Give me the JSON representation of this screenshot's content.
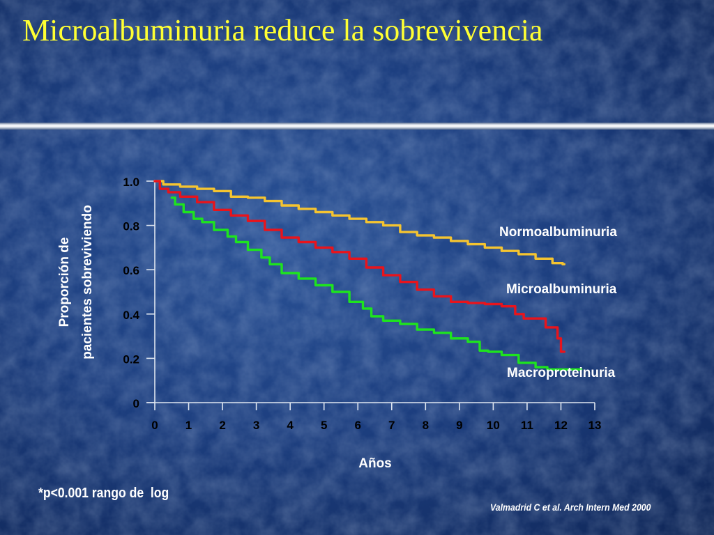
{
  "slide": {
    "title": "Microalbuminuria reduce la sobrevivencia",
    "note": "*p<0.001 rango de  log",
    "citation": "Valmadrid C et al. Arch Intern Med 2000",
    "colors": {
      "title": "#ffff33",
      "background": "#1d3f80",
      "text": "#ffffff",
      "ticks": "#000000"
    }
  },
  "chart_data": {
    "type": "line",
    "title": "",
    "xlabel": "Años",
    "ylabel": "Proporción de pacientes sobreviviendo",
    "ylabel_lines": [
      "Proporción de",
      "pacientes sobreviviendo"
    ],
    "xlim": [
      0,
      13
    ],
    "ylim": [
      0,
      1.0
    ],
    "x_ticks": [
      0,
      1,
      2,
      3,
      4,
      5,
      6,
      7,
      8,
      9,
      10,
      11,
      12,
      13
    ],
    "x_tick_labels": [
      "0",
      "1",
      "2",
      "3",
      "4",
      "5",
      "6",
      "7",
      "8",
      "9",
      "10",
      "11",
      "12",
      "13"
    ],
    "y_ticks": [
      0,
      0.2,
      0.4,
      0.6,
      0.8,
      1.0
    ],
    "y_tick_labels": [
      "0",
      "0.2",
      "0.4",
      "0.6",
      "0.8",
      "1.0"
    ],
    "grid": false,
    "legend": "labels next to lines (right)",
    "series": [
      {
        "name": "Normoalbuminuria",
        "color": "#f5c430",
        "points": [
          [
            0,
            1.0
          ],
          [
            0.5,
            0.985
          ],
          [
            1,
            0.975
          ],
          [
            1.5,
            0.965
          ],
          [
            2,
            0.955
          ],
          [
            2.5,
            0.93
          ],
          [
            3,
            0.925
          ],
          [
            3.5,
            0.91
          ],
          [
            4,
            0.89
          ],
          [
            4.5,
            0.875
          ],
          [
            5,
            0.86
          ],
          [
            5.5,
            0.845
          ],
          [
            6,
            0.83
          ],
          [
            6.5,
            0.815
          ],
          [
            7,
            0.8
          ],
          [
            7.5,
            0.77
          ],
          [
            8,
            0.755
          ],
          [
            8.5,
            0.745
          ],
          [
            9,
            0.73
          ],
          [
            9.5,
            0.715
          ],
          [
            10,
            0.7
          ],
          [
            10.5,
            0.685
          ],
          [
            11,
            0.67
          ],
          [
            11.5,
            0.65
          ],
          [
            12,
            0.63
          ],
          [
            12.1,
            0.625
          ]
        ]
      },
      {
        "name": "Microalbuminuria",
        "color": "#e8141c",
        "points": [
          [
            0,
            1.0
          ],
          [
            0.3,
            0.965
          ],
          [
            0.5,
            0.95
          ],
          [
            1,
            0.93
          ],
          [
            1.5,
            0.905
          ],
          [
            2,
            0.87
          ],
          [
            2.5,
            0.845
          ],
          [
            3,
            0.82
          ],
          [
            3.5,
            0.78
          ],
          [
            4,
            0.745
          ],
          [
            4.5,
            0.725
          ],
          [
            5,
            0.7
          ],
          [
            5.5,
            0.68
          ],
          [
            6,
            0.65
          ],
          [
            6.5,
            0.61
          ],
          [
            7,
            0.575
          ],
          [
            7.5,
            0.545
          ],
          [
            8,
            0.51
          ],
          [
            8.5,
            0.48
          ],
          [
            9,
            0.455
          ],
          [
            9.5,
            0.45
          ],
          [
            10,
            0.445
          ],
          [
            10.5,
            0.435
          ],
          [
            10.8,
            0.4
          ],
          [
            11,
            0.38
          ],
          [
            11.5,
            0.38
          ],
          [
            11.6,
            0.34
          ],
          [
            11.9,
            0.34
          ],
          [
            11.9,
            0.29
          ],
          [
            12,
            0.29
          ],
          [
            12,
            0.23
          ],
          [
            12.1,
            0.23
          ]
        ]
      },
      {
        "name": "Macroproteinuria",
        "color": "#1ee41e",
        "points": [
          [
            0.5,
            0.925
          ],
          [
            0.7,
            0.895
          ],
          [
            1,
            0.86
          ],
          [
            1.3,
            0.83
          ],
          [
            1.5,
            0.815
          ],
          [
            2,
            0.78
          ],
          [
            2.3,
            0.75
          ],
          [
            2.5,
            0.725
          ],
          [
            3,
            0.69
          ],
          [
            3.3,
            0.655
          ],
          [
            3.5,
            0.625
          ],
          [
            4,
            0.585
          ],
          [
            4.5,
            0.56
          ],
          [
            5,
            0.53
          ],
          [
            5.5,
            0.5
          ],
          [
            6,
            0.455
          ],
          [
            6.3,
            0.425
          ],
          [
            6.5,
            0.39
          ],
          [
            7,
            0.37
          ],
          [
            7.5,
            0.355
          ],
          [
            8,
            0.33
          ],
          [
            8.5,
            0.315
          ],
          [
            9,
            0.29
          ],
          [
            9.5,
            0.275
          ],
          [
            9.7,
            0.235
          ],
          [
            10,
            0.23
          ],
          [
            10.5,
            0.215
          ],
          [
            11,
            0.18
          ],
          [
            11.5,
            0.16
          ],
          [
            11.7,
            0.15
          ],
          [
            12,
            0.15
          ],
          [
            12.6,
            0.15
          ]
        ]
      }
    ]
  }
}
